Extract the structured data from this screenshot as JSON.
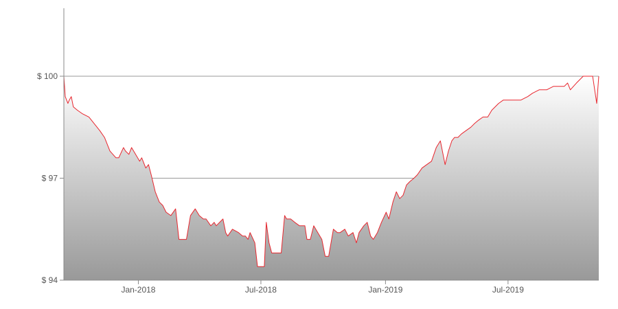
{
  "chart_data": {
    "type": "area",
    "title": "",
    "xlabel": "",
    "ylabel": "",
    "x_ticks": [
      "Jan-2018",
      "Jul-2018",
      "Jan-2019",
      "Jul-2019"
    ],
    "y_ticks": [
      "$ 94",
      "$ 97",
      "$ 100"
    ],
    "ylim": [
      94,
      102
    ],
    "xlim": [
      "2017-09-13",
      "2019-11-12"
    ],
    "grid": "horizontal",
    "colors": {
      "line": "#e8262e",
      "fill_top": "#ffffff",
      "fill_bottom": "#999999",
      "grid": "#999999",
      "axis": "#888888"
    },
    "series": [
      {
        "x": [
          "2017-09-13",
          "2017-09-15",
          "2017-09-19",
          "2017-09-21",
          "2017-09-24",
          "2017-09-27",
          "2017-10-03",
          "2017-10-10",
          "2017-10-20",
          "2017-10-28",
          "2017-11-05",
          "2017-11-12",
          "2017-11-20",
          "2017-11-29",
          "2017-12-03",
          "2017-12-10",
          "2017-12-13",
          "2017-12-18",
          "2017-12-22",
          "2018-01-03",
          "2018-01-06",
          "2018-01-12",
          "2018-01-16",
          "2018-01-20",
          "2018-01-26",
          "2018-02-01",
          "2018-02-06",
          "2018-02-11",
          "2018-02-18",
          "2018-02-25",
          "2018-03-02",
          "2018-03-08",
          "2018-03-13",
          "2018-03-19",
          "2018-03-26",
          "2018-04-01",
          "2018-04-07",
          "2018-04-11",
          "2018-04-18",
          "2018-04-23",
          "2018-04-26",
          "2018-05-06",
          "2018-05-10",
          "2018-05-13",
          "2018-05-20",
          "2018-05-29",
          "2018-06-04",
          "2018-06-08",
          "2018-06-12",
          "2018-06-15",
          "2018-06-22",
          "2018-06-26",
          "2018-07-01",
          "2018-07-06",
          "2018-07-09",
          "2018-07-13",
          "2018-07-17",
          "2018-07-21",
          "2018-07-27",
          "2018-07-31",
          "2018-08-05",
          "2018-08-08",
          "2018-08-14",
          "2018-08-20",
          "2018-08-27",
          "2018-09-04",
          "2018-09-07",
          "2018-09-12",
          "2018-09-17",
          "2018-09-23",
          "2018-09-29",
          "2018-10-04",
          "2018-10-09",
          "2018-10-16",
          "2018-10-22",
          "2018-10-26",
          "2018-11-02",
          "2018-11-07",
          "2018-11-14",
          "2018-11-19",
          "2018-11-23",
          "2018-11-30",
          "2018-12-05",
          "2018-12-10",
          "2018-12-14",
          "2018-12-20",
          "2018-12-26",
          "2019-01-02",
          "2019-01-06",
          "2019-01-12",
          "2019-01-17",
          "2019-01-22",
          "2019-01-27",
          "2019-02-01",
          "2019-02-06",
          "2019-02-12",
          "2019-02-17",
          "2019-02-24",
          "2019-03-03",
          "2019-03-10",
          "2019-03-17",
          "2019-03-23",
          "2019-03-30",
          "2019-04-04",
          "2019-04-09",
          "2019-04-13",
          "2019-04-18",
          "2019-04-23",
          "2019-04-30",
          "2019-05-07",
          "2019-05-12",
          "2019-05-18",
          "2019-05-25",
          "2019-06-01",
          "2019-06-07",
          "2019-06-12",
          "2019-06-17",
          "2019-06-24",
          "2019-07-01",
          "2019-07-10",
          "2019-07-20",
          "2019-07-30",
          "2019-08-06",
          "2019-08-16",
          "2019-08-27",
          "2019-09-06",
          "2019-09-13",
          "2019-09-22",
          "2019-09-27",
          "2019-10-01",
          "2019-10-10",
          "2019-10-20",
          "2019-10-29",
          "2019-11-03",
          "2019-11-09",
          "2019-11-12"
        ],
        "y": [
          100.0,
          99.4,
          99.2,
          99.3,
          99.4,
          99.1,
          99.0,
          98.9,
          98.8,
          98.6,
          98.4,
          98.2,
          97.8,
          97.6,
          97.6,
          97.9,
          97.8,
          97.7,
          97.9,
          97.5,
          97.6,
          97.3,
          97.4,
          97.1,
          96.6,
          96.3,
          96.2,
          96.0,
          95.9,
          96.1,
          95.2,
          95.2,
          95.2,
          95.9,
          96.1,
          95.9,
          95.8,
          95.8,
          95.6,
          95.7,
          95.6,
          95.8,
          95.4,
          95.3,
          95.5,
          95.4,
          95.3,
          95.3,
          95.2,
          95.4,
          95.1,
          94.4,
          94.4,
          94.4,
          95.7,
          95.1,
          94.8,
          94.8,
          94.8,
          94.8,
          95.9,
          95.8,
          95.8,
          95.7,
          95.6,
          95.6,
          95.2,
          95.2,
          95.6,
          95.4,
          95.2,
          94.7,
          94.7,
          95.5,
          95.4,
          95.4,
          95.5,
          95.3,
          95.4,
          95.1,
          95.4,
          95.6,
          95.7,
          95.3,
          95.2,
          95.4,
          95.7,
          96.0,
          95.8,
          96.3,
          96.6,
          96.4,
          96.5,
          96.8,
          96.9,
          97.0,
          97.1,
          97.3,
          97.4,
          97.5,
          97.9,
          98.1,
          97.4,
          97.8,
          98.1,
          98.2,
          98.2,
          98.3,
          98.4,
          98.5,
          98.6,
          98.7,
          98.8,
          98.8,
          99.0,
          99.1,
          99.2,
          99.3,
          99.3,
          99.3,
          99.3,
          99.4,
          99.5,
          99.6,
          99.6,
          99.7,
          99.7,
          99.7,
          99.8,
          99.6,
          99.8,
          100.0,
          100.0,
          100.0,
          99.2,
          100.0
        ]
      }
    ]
  }
}
